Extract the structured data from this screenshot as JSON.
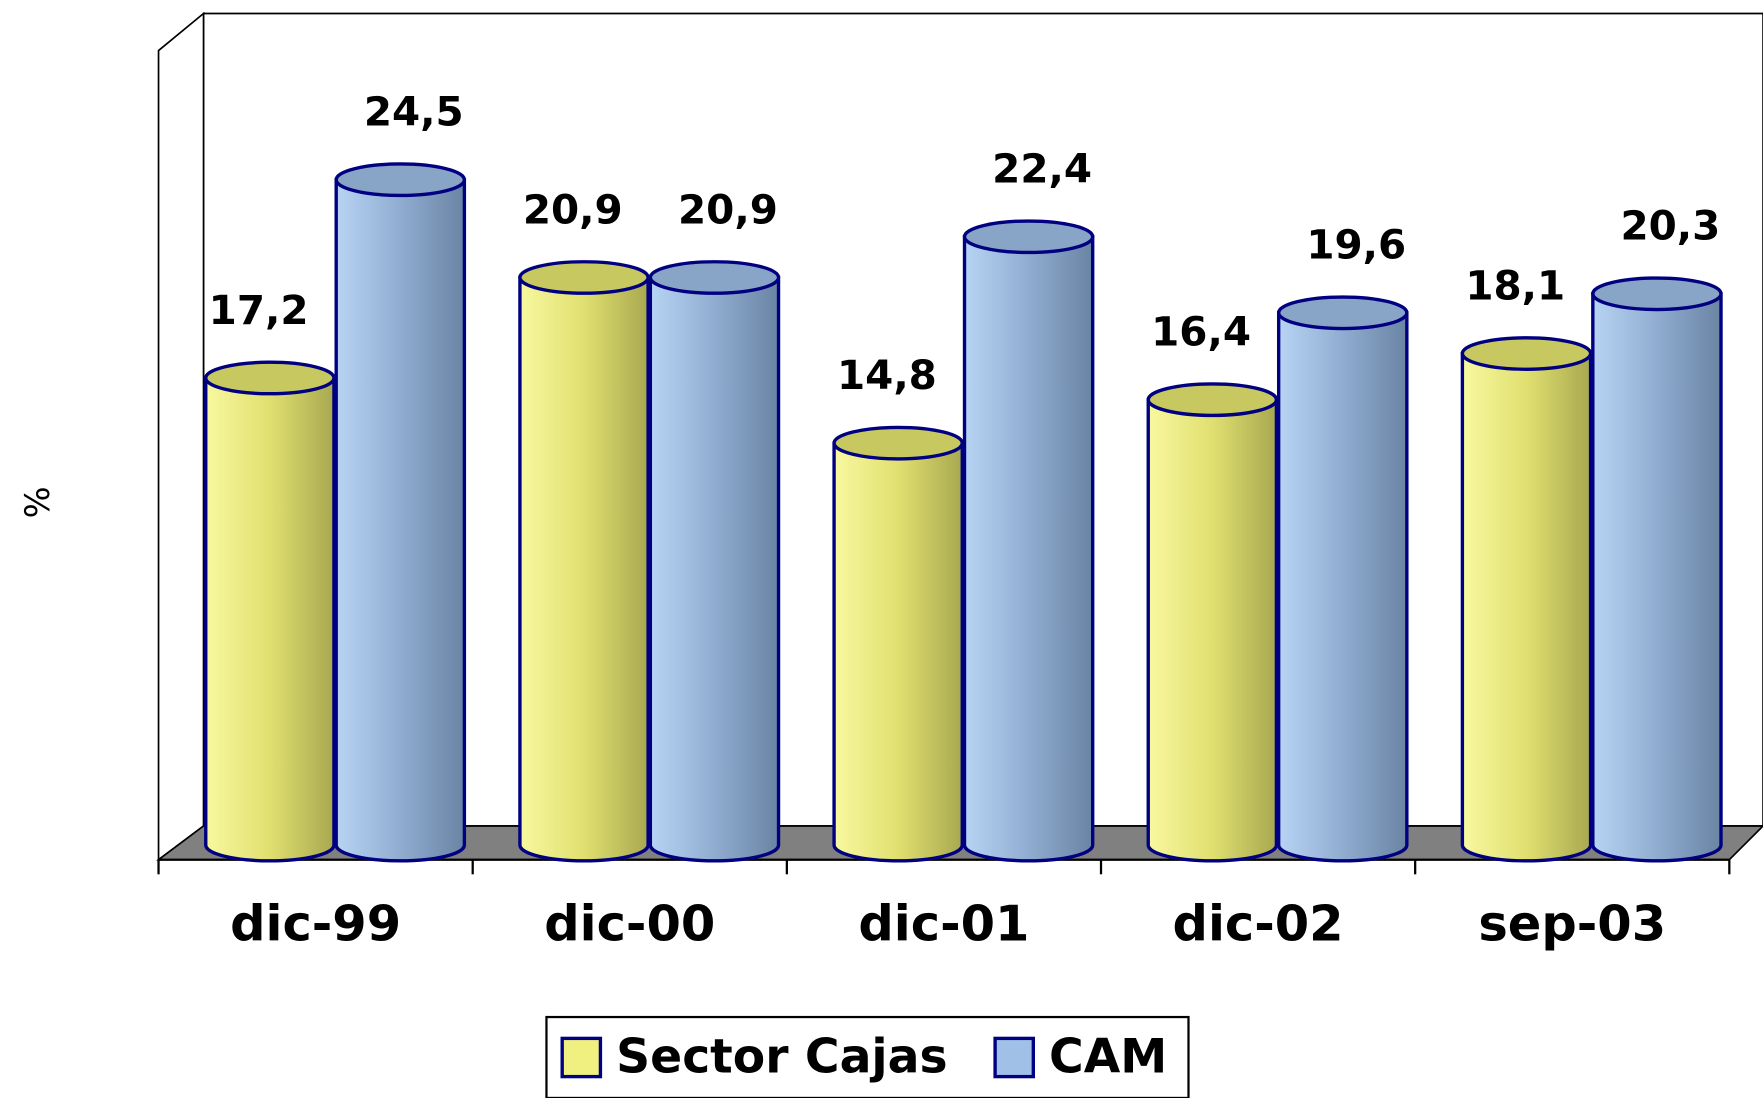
{
  "chart_data": {
    "type": "bar3d",
    "y_label": "%",
    "categories": [
      "dic-99",
      "dic-00",
      "dic-01",
      "dic-02",
      "sep-03"
    ],
    "series": [
      {
        "name": "Sector Cajas",
        "color": "#f0f080",
        "values": [
          17.2,
          20.9,
          14.8,
          16.4,
          18.1
        ],
        "value_labels": [
          "17,2",
          "20,9",
          "14,8",
          "16,4",
          "18,1"
        ]
      },
      {
        "name": "CAM",
        "color": "#a0c0e8",
        "values": [
          24.5,
          20.9,
          22.4,
          19.6,
          20.3
        ],
        "value_labels": [
          "24,5",
          "20,9",
          "22,4",
          "19,6",
          "20,3"
        ]
      }
    ],
    "ylim": [
      0,
      30
    ],
    "legend": "bottom"
  }
}
